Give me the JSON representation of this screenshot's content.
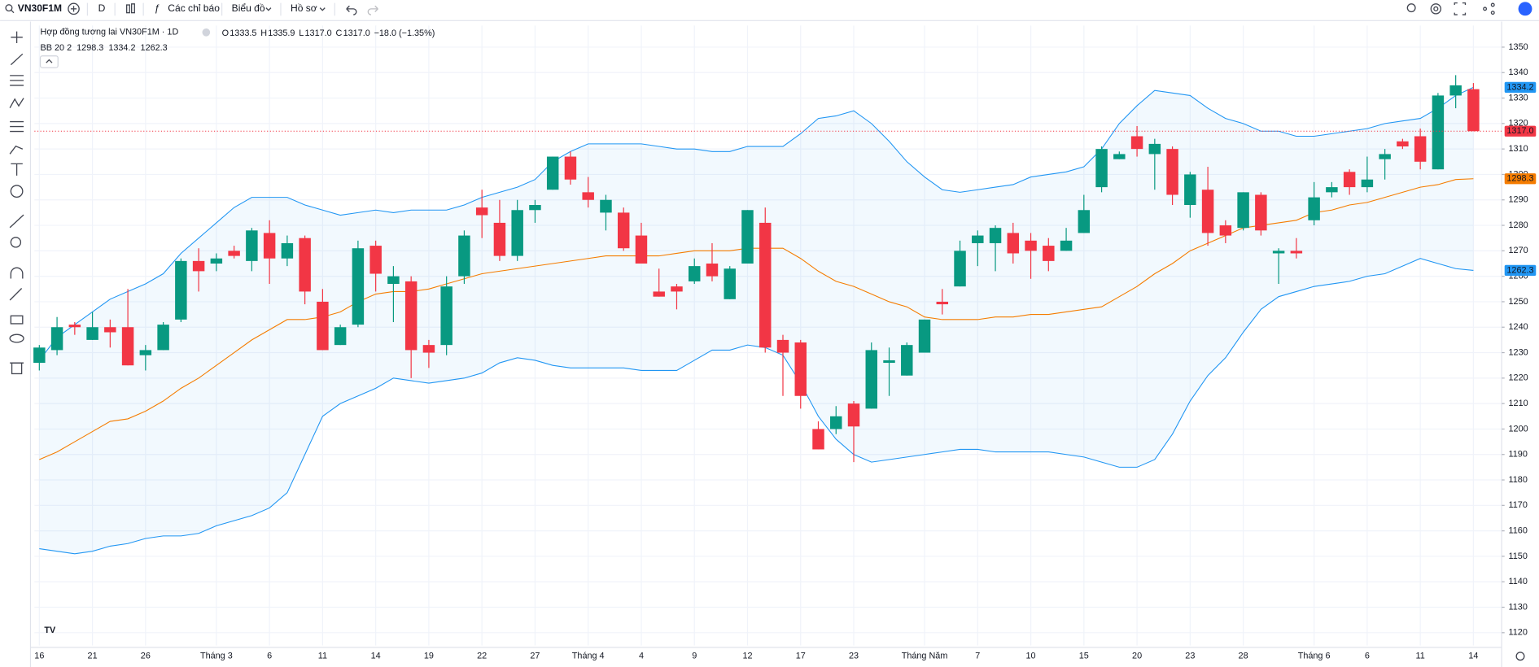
{
  "toolbar": {
    "symbol": "VN30F1M",
    "interval": "D",
    "indicators": "Các chỉ báo",
    "chart_type": "Biểu đồ",
    "profile": "Hồ sơ"
  },
  "chart_data": {
    "type": "candlestick",
    "title": "Hợp đồng tương lai VN30F1M · 1D",
    "ohlc_legend": [
      {
        "key": "O",
        "value": "1333.5"
      },
      {
        "key": "H",
        "value": "1335.9"
      },
      {
        "key": "L",
        "value": "1317.0"
      },
      {
        "key": "C",
        "value": "1317.0"
      }
    ],
    "change_label": "−18.0 (−1.35%)",
    "last_price_label": "1317.0",
    "up_color": "#089981",
    "down_color": "#f23645",
    "categories": [
      "16",
      null,
      null,
      "21",
      null,
      null,
      "26",
      null,
      null,
      null,
      "Tháng 3",
      null,
      null,
      "6",
      null,
      null,
      "11",
      null,
      null,
      "14",
      null,
      null,
      "19",
      null,
      null,
      "22",
      null,
      null,
      "27",
      null,
      null,
      "Tháng 4",
      null,
      null,
      "4",
      null,
      null,
      "9",
      null,
      null,
      "12",
      null,
      null,
      "17",
      null,
      null,
      "23",
      null,
      null,
      null,
      "Tháng Năm",
      null,
      null,
      "7",
      null,
      null,
      "10",
      null,
      null,
      "15",
      null,
      null,
      "20",
      null,
      null,
      "23",
      null,
      null,
      "28",
      null,
      null,
      null,
      "Tháng 6",
      null,
      null,
      "6",
      null,
      null,
      "11",
      null,
      null,
      "14"
    ],
    "open": [
      1226,
      1231,
      1241,
      1235,
      1240,
      1240,
      1229,
      1231,
      1243,
      1266,
      1265,
      1270,
      1266,
      1277,
      1267,
      1275,
      1250,
      1233,
      1241,
      1272,
      1257,
      1258,
      1233,
      1233,
      1260,
      1287,
      1281,
      1268,
      1286,
      1294,
      1307,
      1293,
      1285,
      1285,
      1276,
      1254,
      1256,
      1258,
      1265,
      1251,
      1265,
      1281,
      1235,
      1234,
      1200,
      1200,
      1210,
      1208,
      1226,
      1221,
      1230,
      1250,
      1256,
      1273,
      1273,
      1277,
      1274,
      1272,
      1270,
      1277,
      1295,
      1306,
      1315,
      1308,
      1310,
      1288,
      1294,
      1280,
      1279,
      1292,
      1269,
      1270,
      1282,
      1293,
      1301,
      1295,
      1306,
      1313,
      1315,
      1302,
      1331,
      1333.5
    ],
    "high": [
      1233,
      1244,
      1242,
      1246,
      1243,
      1255,
      1233,
      1242,
      1267,
      1271,
      1269,
      1272,
      1279,
      1282,
      1276,
      1276,
      1255,
      1241,
      1274,
      1274,
      1264,
      1260,
      1235,
      1260,
      1278,
      1294,
      1290,
      1290,
      1290,
      1307,
      1309,
      1299,
      1292,
      1287,
      1281,
      1263,
      1257,
      1267,
      1273,
      1264,
      1286,
      1287,
      1237,
      1235,
      1203,
      1209,
      1211,
      1234,
      1232,
      1234,
      1243,
      1255,
      1274,
      1278,
      1280,
      1281,
      1277,
      1275,
      1279,
      1292,
      1311,
      1309,
      1319,
      1314,
      1311,
      1301,
      1303,
      1282,
      1293,
      1293,
      1271,
      1275,
      1297,
      1297,
      1302,
      1307,
      1310,
      1314,
      1318,
      1332,
      1339,
      1335.9
    ],
    "low": [
      1223,
      1229,
      1237,
      1235,
      1232,
      1225,
      1223,
      1231,
      1242,
      1254,
      1262,
      1267,
      1262,
      1257,
      1264,
      1249,
      1231,
      1233,
      1240,
      1254,
      1242,
      1220,
      1224,
      1229,
      1257,
      1275,
      1266,
      1266,
      1281,
      1294,
      1296,
      1287,
      1278,
      1270,
      1265,
      1252,
      1247,
      1257,
      1258,
      1251,
      1265,
      1230,
      1213,
      1208,
      1192,
      1198,
      1187,
      1208,
      1213,
      1221,
      1230,
      1245,
      1256,
      1264,
      1262,
      1265,
      1259,
      1262,
      1270,
      1277,
      1293,
      1306,
      1307,
      1294,
      1288,
      1283,
      1272,
      1273,
      1278,
      1276,
      1257,
      1267,
      1280,
      1291,
      1292,
      1293,
      1298,
      1310,
      1302,
      1302,
      1326,
      1317
    ],
    "close": [
      1232,
      1240,
      1240,
      1240,
      1238,
      1225,
      1231,
      1241,
      1266,
      1262,
      1267,
      1268,
      1278,
      1267,
      1273,
      1254,
      1231,
      1240,
      1271,
      1261,
      1260,
      1231,
      1230,
      1256,
      1276,
      1284,
      1268,
      1286,
      1288,
      1307,
      1298,
      1290,
      1290,
      1271,
      1265,
      1252,
      1254,
      1264,
      1260,
      1263,
      1286,
      1232,
      1230,
      1213,
      1192,
      1205,
      1201,
      1231,
      1227,
      1233,
      1243,
      1249,
      1270,
      1276,
      1279,
      1269,
      1270,
      1266,
      1274,
      1286,
      1310,
      1308,
      1310,
      1312,
      1292,
      1300,
      1277,
      1276,
      1293,
      1278,
      1270,
      1269,
      1291,
      1295,
      1295,
      1298,
      1308,
      1311,
      1305,
      1331,
      1335,
      1317
    ],
    "indicator": {
      "label": "BB 20 2",
      "fill_color": "#2196f3",
      "series": [
        {
          "color": "#f57c00",
          "values": [
            1188,
            1191,
            1195,
            1199,
            1203,
            1204,
            1207,
            1211,
            1216,
            1220,
            1225,
            1230,
            1235,
            1239,
            1243,
            1243,
            1244,
            1246,
            1250,
            1253,
            1254,
            1254,
            1255,
            1257,
            1259,
            1261,
            1262,
            1263,
            1264,
            1265,
            1266,
            1267,
            1268,
            1268,
            1268,
            1268,
            1269,
            1270,
            1270,
            1270,
            1271,
            1271,
            1271,
            1267,
            1262,
            1258,
            1256,
            1253,
            1250,
            1248,
            1244,
            1243,
            1243,
            1243,
            1244,
            1244,
            1245,
            1245,
            1246,
            1247,
            1248,
            1252,
            1256,
            1261,
            1265,
            1270,
            1273,
            1276,
            1279,
            1280,
            1281,
            1282,
            1285,
            1286,
            1288,
            1289,
            1291,
            1293,
            1295,
            1296,
            1298,
            1298.3
          ]
        },
        {
          "color": "#2196f3",
          "values": [
            1227,
            1236,
            1241,
            1246,
            1251,
            1254,
            1257,
            1261,
            1269,
            1275,
            1281,
            1287,
            1291,
            1291,
            1291,
            1288,
            1286,
            1284,
            1285,
            1286,
            1285,
            1286,
            1286,
            1286,
            1288,
            1291,
            1293,
            1295,
            1298,
            1305,
            1309,
            1312,
            1312,
            1312,
            1312,
            1311,
            1310,
            1310,
            1309,
            1309,
            1311,
            1311,
            1311,
            1316,
            1322,
            1323,
            1325,
            1320,
            1313,
            1305,
            1299,
            1294,
            1293,
            1294,
            1295,
            1296,
            1299,
            1300,
            1301,
            1303,
            1310,
            1320,
            1327,
            1333,
            1332,
            1331,
            1326,
            1322,
            1320,
            1317,
            1317,
            1315,
            1315,
            1316,
            1317,
            1318,
            1320,
            1321,
            1322,
            1326,
            1331,
            1334.2
          ]
        },
        {
          "color": "#2196f3",
          "values": [
            1153,
            1152,
            1151,
            1152,
            1154,
            1155,
            1157,
            1158,
            1158,
            1159,
            1162,
            1164,
            1166,
            1169,
            1175,
            1190,
            1205,
            1210,
            1213,
            1216,
            1220,
            1219,
            1218,
            1219,
            1220,
            1222,
            1226,
            1228,
            1227,
            1225,
            1224,
            1224,
            1224,
            1224,
            1223,
            1223,
            1223,
            1227,
            1231,
            1231,
            1233,
            1232,
            1229,
            1218,
            1205,
            1196,
            1190,
            1187,
            1188,
            1189,
            1190,
            1191,
            1192,
            1192,
            1191,
            1191,
            1191,
            1191,
            1190,
            1189,
            1187,
            1185,
            1185,
            1188,
            1198,
            1211,
            1221,
            1228,
            1238,
            1247,
            1252,
            1254,
            1256,
            1257,
            1258,
            1260,
            1261,
            1264,
            1267,
            1265,
            1263,
            1262.3
          ]
        }
      ]
    },
    "ylim": [
      1115,
      1358.5
    ],
    "yticks": [
      1120,
      1130,
      1140,
      1150,
      1160,
      1170,
      1180,
      1190,
      1200,
      1210,
      1220,
      1230,
      1240,
      1250,
      1260,
      1270,
      1280,
      1290,
      1300,
      1310,
      1320,
      1330,
      1340,
      1350
    ],
    "grid": true
  }
}
